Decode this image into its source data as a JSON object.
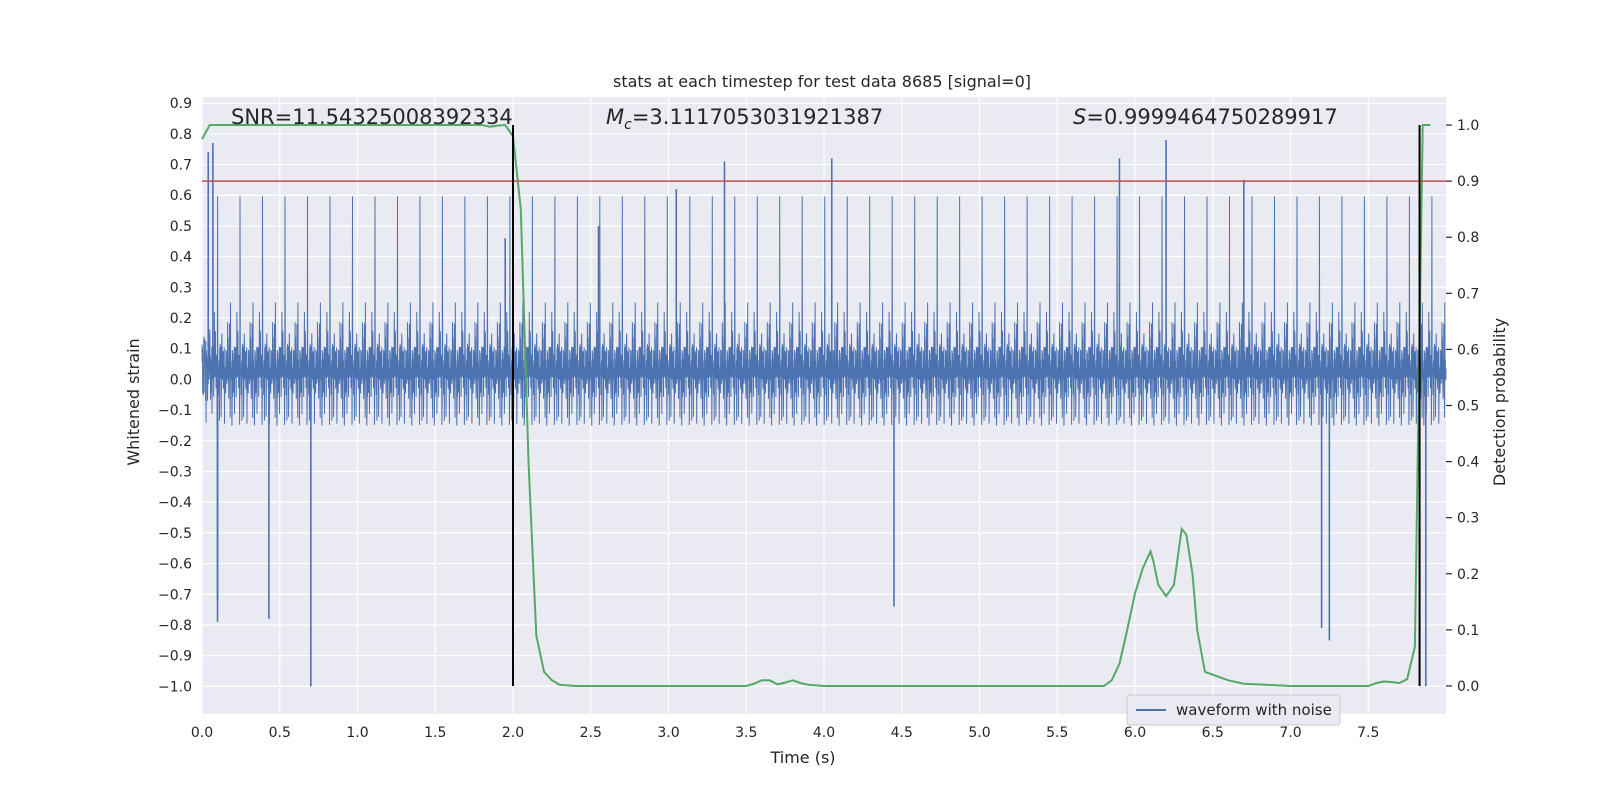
{
  "chart_data": {
    "type": "line",
    "title": "stats at each timestep for test data 8685 [signal=0]",
    "xlabel": "Time (s)",
    "ylabel_left": "Whitened strain",
    "ylabel_right": "Detection probability",
    "xlim": [
      0.0,
      8.0
    ],
    "ylim_left": [
      -1.09,
      0.92
    ],
    "ylim_right": [
      -0.05,
      1.05
    ],
    "x_ticks": [
      "0.0",
      "0.5",
      "1.0",
      "1.5",
      "2.0",
      "2.5",
      "3.0",
      "3.5",
      "4.0",
      "4.5",
      "5.0",
      "5.5",
      "6.0",
      "6.5",
      "7.0",
      "7.5"
    ],
    "y_left_ticks": [
      "0.9",
      "0.8",
      "0.7",
      "0.6",
      "0.5",
      "0.4",
      "0.3",
      "0.2",
      "0.1",
      "0.0",
      "−0.1",
      "−0.2",
      "−0.3",
      "−0.4",
      "−0.5",
      "−0.6",
      "−0.7",
      "−0.8",
      "−0.9",
      "−1.0"
    ],
    "y_right_ticks": [
      "1.0",
      "0.9",
      "0.8",
      "0.7",
      "0.6",
      "0.5",
      "0.4",
      "0.3",
      "0.2",
      "0.1",
      "0.0"
    ],
    "grid": true,
    "legend_position": "lower-right",
    "annotations": {
      "snr": "SNR=11.54325008392334",
      "mc_symbol": "M",
      "mc_sub": "c",
      "mc_value": "=3.1117053031921387",
      "s_symbol": "S",
      "s_value": "=0.9999464750289917"
    },
    "threshold_line_right": 0.9,
    "vertical_lines_x": [
      2.0,
      7.83
    ],
    "series": [
      {
        "name": "waveform with noise",
        "axis": "left",
        "color": "#4c72b0",
        "render": "dense-noise",
        "envelope_typical": 0.28,
        "peaks": [
          {
            "x": 0.04,
            "y": 0.74
          },
          {
            "x": 0.07,
            "y": 0.77
          },
          {
            "x": 0.1,
            "y": -0.72
          },
          {
            "x": 0.1,
            "y": -0.79
          },
          {
            "x": 0.43,
            "y": -0.78
          },
          {
            "x": 0.7,
            "y": -1.0
          },
          {
            "x": 1.95,
            "y": 0.46
          },
          {
            "x": 2.55,
            "y": 0.5
          },
          {
            "x": 3.36,
            "y": 0.71
          },
          {
            "x": 3.05,
            "y": 0.62
          },
          {
            "x": 4.05,
            "y": 0.72
          },
          {
            "x": 4.45,
            "y": -0.74
          },
          {
            "x": 6.2,
            "y": 0.78
          },
          {
            "x": 5.9,
            "y": 0.72
          },
          {
            "x": 6.7,
            "y": 0.65
          },
          {
            "x": 7.25,
            "y": -0.85
          },
          {
            "x": 7.2,
            "y": -0.81
          },
          {
            "x": 7.87,
            "y": -1.0
          }
        ]
      },
      {
        "name": "",
        "axis": "right",
        "color": "#55a868",
        "x": [
          0.0,
          0.05,
          0.1,
          0.2,
          0.5,
          1.0,
          1.5,
          1.8,
          1.85,
          1.9,
          1.95,
          2.0,
          2.05,
          2.1,
          2.15,
          2.2,
          2.25,
          2.3,
          2.4,
          2.5,
          2.6,
          3.0,
          3.5,
          3.55,
          3.6,
          3.65,
          3.7,
          3.75,
          3.8,
          3.85,
          3.9,
          4.0,
          4.5,
          5.0,
          5.5,
          5.8,
          5.85,
          5.9,
          5.95,
          6.0,
          6.05,
          6.1,
          6.12,
          6.15,
          6.2,
          6.25,
          6.3,
          6.33,
          6.37,
          6.4,
          6.45,
          6.5,
          6.6,
          6.7,
          7.0,
          7.5,
          7.55,
          7.6,
          7.65,
          7.7,
          7.75,
          7.8,
          7.85,
          7.87,
          7.9
        ],
        "y": [
          0.975,
          1.0,
          1.0,
          1.0,
          1.0,
          1.0,
          1.0,
          1.0,
          0.997,
          0.999,
          1.0,
          0.98,
          0.85,
          0.4,
          0.09,
          0.025,
          0.01,
          0.002,
          0.0,
          0.0,
          0.0,
          0.0,
          0.0,
          0.004,
          0.01,
          0.01,
          0.003,
          0.006,
          0.01,
          0.005,
          0.002,
          0.0,
          0.0,
          0.0,
          0.0,
          0.0,
          0.01,
          0.04,
          0.1,
          0.165,
          0.21,
          0.24,
          0.22,
          0.18,
          0.16,
          0.18,
          0.28,
          0.27,
          0.2,
          0.1,
          0.025,
          0.02,
          0.01,
          0.004,
          0.0,
          0.0,
          0.005,
          0.008,
          0.007,
          0.005,
          0.012,
          0.07,
          1.0,
          1.0,
          1.0
        ]
      }
    ],
    "colors": {
      "plot_bg": "#eaeaf2",
      "grid": "#ffffff",
      "threshold": "#c44e52",
      "vline": "#000000"
    }
  }
}
